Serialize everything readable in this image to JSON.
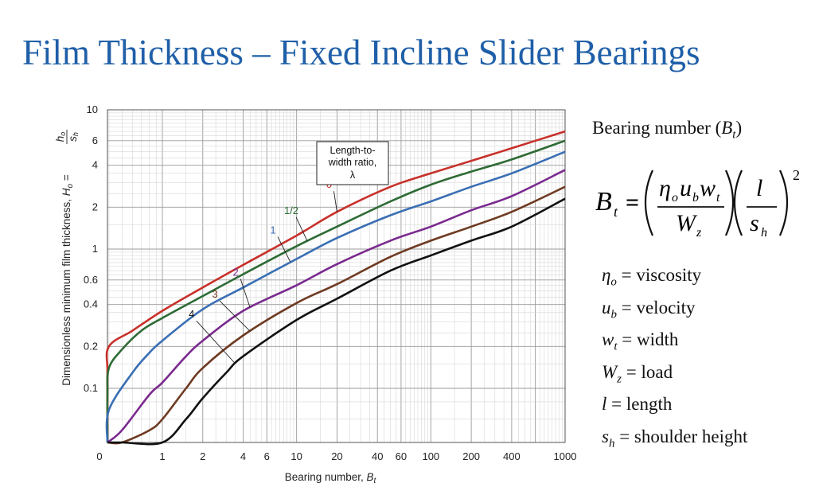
{
  "title": "Film Thickness – Fixed Incline Slider Bearings",
  "bearing_number_heading": {
    "text": "Bearing number (",
    "symbol": "B",
    "sub": "t",
    "close": ")"
  },
  "formula": {
    "lhs": "B",
    "lhs_sub": "t",
    "equals": "=",
    "num1": [
      "η",
      "o",
      "u",
      "b",
      "w",
      "t"
    ],
    "den1": [
      "W",
      "z"
    ],
    "num2": "l",
    "den2": [
      "s",
      "h"
    ],
    "exponent": "2"
  },
  "definitions": [
    {
      "sym": "η",
      "sub": "o",
      "text": " = viscosity"
    },
    {
      "sym": "u",
      "sub": "b",
      "text": " = velocity"
    },
    {
      "sym": "w",
      "sub": "t",
      "text": " = width"
    },
    {
      "sym": "W",
      "sub": "z",
      "text": " = load"
    },
    {
      "sym": "l",
      "sub": "",
      "text": " = length"
    },
    {
      "sym": "s",
      "sub": "h",
      "text": " = shoulder height"
    }
  ],
  "chart_data": {
    "type": "line",
    "xscale": "log",
    "yscale": "log",
    "xlim": [
      0,
      1000
    ],
    "ylim": [
      0,
      10
    ],
    "xticks": [
      "0",
      "1",
      "2",
      "4",
      "6",
      "10",
      "20",
      "40",
      "60",
      "100",
      "200",
      "400",
      "1000"
    ],
    "xtick_values": [
      0,
      1,
      2,
      4,
      6,
      10,
      20,
      40,
      60,
      100,
      200,
      400,
      1000
    ],
    "yticks": [
      "10",
      "6",
      "4",
      "2",
      "1",
      "0.6",
      "0.4",
      "0.2",
      "0.1"
    ],
    "ytick_values": [
      10,
      6,
      4,
      2,
      1,
      0.6,
      0.4,
      0.2,
      0.1
    ],
    "xlabel": {
      "text": "Bearing number, ",
      "sym": "B",
      "sub": "t"
    },
    "ylabel": {
      "text": "Dimensionless minimum film thickness, ",
      "sym": "H",
      "sub": "o",
      "eq": " = ",
      "num": "h",
      "num_sub": "o",
      "den": "s",
      "den_sub": "h"
    },
    "legend": {
      "line1": "Length-to-",
      "line2": "width ratio,",
      "line3": "λ"
    },
    "series": [
      {
        "name": "0",
        "color": "#c8302a",
        "x": [
          0,
          0.2,
          0.3,
          0.4,
          0.6,
          1,
          2,
          4,
          10,
          20,
          50,
          100,
          200,
          400,
          1000
        ],
        "y": [
          0,
          0.05,
          0.13,
          0.2,
          0.26,
          0.36,
          0.53,
          0.77,
          1.25,
          1.85,
          2.8,
          3.5,
          4.3,
          5.3,
          7.0
        ]
      },
      {
        "name": "1/2",
        "color": "#2e6b35",
        "x": [
          0,
          0.3,
          0.4,
          0.5,
          0.7,
          1,
          2,
          4,
          10,
          20,
          50,
          100,
          200,
          400,
          1000
        ],
        "y": [
          0,
          0.09,
          0.14,
          0.19,
          0.26,
          0.32,
          0.46,
          0.66,
          1.05,
          1.45,
          2.2,
          2.9,
          3.6,
          4.4,
          6.0
        ]
      },
      {
        "name": "1",
        "color": "#3a6fb4",
        "x": [
          0,
          0.4,
          0.6,
          0.8,
          1,
          2,
          4,
          10,
          20,
          50,
          100,
          200,
          400,
          1000
        ],
        "y": [
          0,
          0.07,
          0.13,
          0.18,
          0.22,
          0.37,
          0.53,
          0.85,
          1.2,
          1.75,
          2.2,
          2.8,
          3.5,
          5.0
        ]
      },
      {
        "name": "2",
        "color": "#7a2a8e",
        "x": [
          0,
          0.5,
          0.8,
          1,
          1.5,
          2,
          4,
          10,
          20,
          50,
          100,
          200,
          400,
          1000
        ],
        "y": [
          0,
          0.05,
          0.09,
          0.11,
          0.17,
          0.22,
          0.36,
          0.55,
          0.78,
          1.15,
          1.45,
          1.9,
          2.4,
          3.7
        ]
      },
      {
        "name": "3",
        "color": "#6e3a22",
        "x": [
          0,
          0.5,
          0.8,
          1,
          1.5,
          2,
          4,
          10,
          20,
          50,
          100,
          200,
          400,
          1000
        ],
        "y": [
          0,
          0.03,
          0.05,
          0.06,
          0.1,
          0.14,
          0.24,
          0.41,
          0.56,
          0.88,
          1.15,
          1.45,
          1.85,
          2.8
        ]
      },
      {
        "name": "4",
        "color": "#111111",
        "x": [
          0,
          0.5,
          1,
          1.5,
          2,
          3,
          4,
          10,
          20,
          50,
          100,
          200,
          400,
          1000
        ],
        "y": [
          0,
          0.02,
          0.04,
          0.06,
          0.085,
          0.13,
          0.17,
          0.31,
          0.44,
          0.7,
          0.9,
          1.15,
          1.45,
          2.3
        ]
      }
    ],
    "label_annotations": [
      {
        "series": "0",
        "text": "0",
        "at_x": 20
      },
      {
        "series": "1/2",
        "text": "1/2",
        "at_x": 12
      },
      {
        "series": "1",
        "text": "1",
        "at_x": 9
      },
      {
        "series": "2",
        "text": "2",
        "at_x": 4.5
      },
      {
        "series": "3",
        "text": "3",
        "at_x": 4.5
      },
      {
        "series": "4",
        "text": "4",
        "at_x": 3.5
      }
    ]
  }
}
